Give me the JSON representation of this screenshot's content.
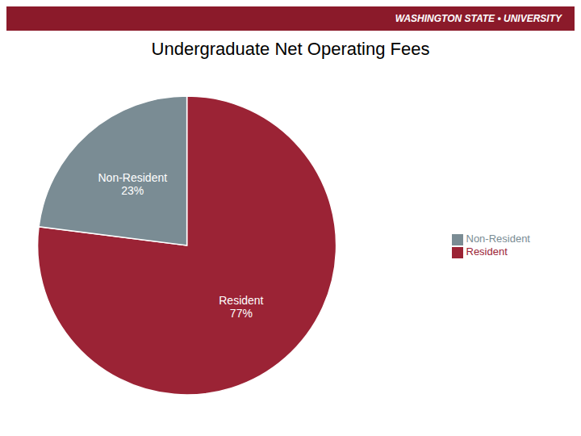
{
  "chart_data": {
    "type": "pie",
    "title": "Undergraduate Net Operating Fees",
    "annotations": [
      "WASHINGTON STATE • UNIVERSITY"
    ],
    "categories": [
      "Resident",
      "Non-Resident"
    ],
    "values": [
      77,
      23
    ],
    "value_labels": [
      "Resident\n77%",
      "Non-Resident\n23%"
    ],
    "data_labels": true,
    "colors": [
      "#9B2335",
      "#7A8C94"
    ],
    "legend": "right"
  }
}
